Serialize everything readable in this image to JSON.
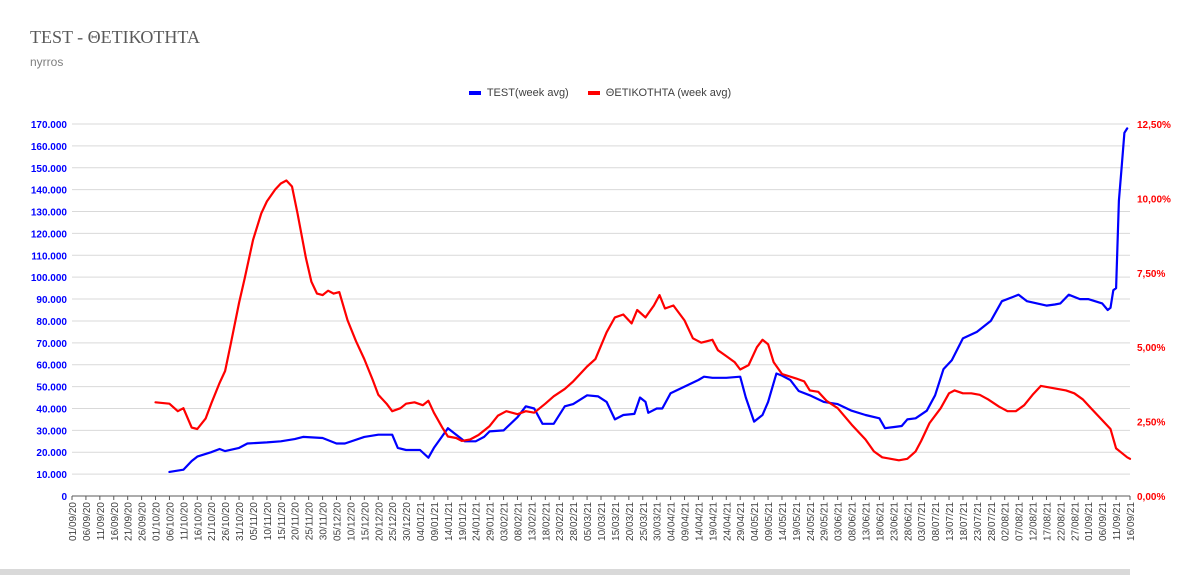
{
  "title": "TEST - ΘΕΤΙΚΟΤΗΤΑ",
  "subtitle": "nyrros",
  "colors": {
    "test": "#0000ff",
    "positivity": "#ff0000",
    "grid": "#d9d9d9",
    "axis_left": "#0000ff",
    "axis_right": "#ff0000"
  },
  "chart_data": {
    "type": "line",
    "title": "TEST - ΘΕΤΙΚΟΤΗΤΑ",
    "legend_position": "top-center",
    "grid": true,
    "x_tick_labels": [
      "01/09/20",
      "06/09/20",
      "11/09/20",
      "16/09/20",
      "21/09/20",
      "26/09/20",
      "01/10/20",
      "06/10/20",
      "11/10/20",
      "16/10/20",
      "21/10/20",
      "26/10/20",
      "31/10/20",
      "05/11/20",
      "10/11/20",
      "15/11/20",
      "20/11/20",
      "25/11/20",
      "30/11/20",
      "05/12/20",
      "10/12/20",
      "15/12/20",
      "20/12/20",
      "25/12/20",
      "30/12/20",
      "04/01/21",
      "09/01/21",
      "14/01/21",
      "19/01/21",
      "24/01/21",
      "29/01/21",
      "03/02/21",
      "08/02/21",
      "13/02/21",
      "18/02/21",
      "23/02/21",
      "28/02/21",
      "05/03/21",
      "10/03/21",
      "15/03/21",
      "20/03/21",
      "25/03/21",
      "30/03/21",
      "04/04/21",
      "09/04/21",
      "14/04/21",
      "19/04/21",
      "24/04/21",
      "29/04/21",
      "04/05/21",
      "09/05/21",
      "14/05/21",
      "19/05/21",
      "24/05/21",
      "29/05/21",
      "03/06/21",
      "08/06/21",
      "13/06/21",
      "18/06/21",
      "23/06/21",
      "28/06/21",
      "03/07/21",
      "08/07/21",
      "13/07/21",
      "18/07/21",
      "23/07/21",
      "28/07/21",
      "02/08/21",
      "07/08/21",
      "12/08/21",
      "17/08/21",
      "22/08/21",
      "27/08/21",
      "01/09/21",
      "06/09/21",
      "11/09/21",
      "16/09/21"
    ],
    "y_left": {
      "min": 0,
      "max": 170000,
      "ticks": [
        "0",
        "10.000",
        "20.000",
        "30.000",
        "40.000",
        "50.000",
        "60.000",
        "70.000",
        "80.000",
        "90.000",
        "100.000",
        "110.000",
        "120.000",
        "130.000",
        "140.000",
        "150.000",
        "160.000",
        "170.000"
      ]
    },
    "y_right": {
      "min": 0,
      "max": 12.5,
      "ticks": [
        "0,00%",
        "2,50%",
        "5,00%",
        "7,50%",
        "10,00%",
        "12,50%"
      ]
    },
    "series": [
      {
        "name": "TEST(week avg)",
        "axis": "left",
        "points": [
          [
            "06/10/20",
            11000
          ],
          [
            "11/10/20",
            12000
          ],
          [
            "14/10/20",
            16000
          ],
          [
            "16/10/20",
            18000
          ],
          [
            "21/10/20",
            20000
          ],
          [
            "24/10/20",
            21500
          ],
          [
            "26/10/20",
            20500
          ],
          [
            "31/10/20",
            22000
          ],
          [
            "03/11/20",
            24000
          ],
          [
            "10/11/20",
            24500
          ],
          [
            "15/11/20",
            25000
          ],
          [
            "20/11/20",
            26000
          ],
          [
            "23/11/20",
            27000
          ],
          [
            "30/11/20",
            26500
          ],
          [
            "05/12/20",
            24000
          ],
          [
            "08/12/20",
            24000
          ],
          [
            "15/12/20",
            27000
          ],
          [
            "20/12/20",
            28000
          ],
          [
            "25/12/20",
            28000
          ],
          [
            "27/12/20",
            22000
          ],
          [
            "30/12/20",
            21000
          ],
          [
            "04/01/21",
            21000
          ],
          [
            "07/01/21",
            17500
          ],
          [
            "09/01/21",
            22000
          ],
          [
            "14/01/21",
            31000
          ],
          [
            "17/01/21",
            28000
          ],
          [
            "20/01/21",
            25000
          ],
          [
            "24/01/21",
            25000
          ],
          [
            "27/01/21",
            27000
          ],
          [
            "29/01/21",
            29500
          ],
          [
            "03/02/21",
            30000
          ],
          [
            "08/02/21",
            36000
          ],
          [
            "11/02/21",
            41000
          ],
          [
            "14/02/21",
            40000
          ],
          [
            "17/02/21",
            33000
          ],
          [
            "21/02/21",
            33000
          ],
          [
            "25/02/21",
            41000
          ],
          [
            "28/02/21",
            42000
          ],
          [
            "05/03/21",
            46000
          ],
          [
            "09/03/21",
            45500
          ],
          [
            "12/03/21",
            43000
          ],
          [
            "15/03/21",
            35000
          ],
          [
            "18/03/21",
            37000
          ],
          [
            "22/03/21",
            37500
          ],
          [
            "24/03/21",
            45000
          ],
          [
            "26/03/21",
            43000
          ],
          [
            "27/03/21",
            38000
          ],
          [
            "30/03/21",
            40000
          ],
          [
            "01/04/21",
            40000
          ],
          [
            "04/04/21",
            47000
          ],
          [
            "09/04/21",
            50000
          ],
          [
            "14/04/21",
            53000
          ],
          [
            "16/04/21",
            54500
          ],
          [
            "19/04/21",
            54000
          ],
          [
            "24/04/21",
            54000
          ],
          [
            "29/04/21",
            54500
          ],
          [
            "01/05/21",
            45000
          ],
          [
            "04/05/21",
            34000
          ],
          [
            "07/05/21",
            37000
          ],
          [
            "09/05/21",
            43000
          ],
          [
            "12/05/21",
            56000
          ],
          [
            "14/05/21",
            55000
          ],
          [
            "17/05/21",
            53000
          ],
          [
            "20/05/21",
            48000
          ],
          [
            "24/05/21",
            46000
          ],
          [
            "29/05/21",
            43000
          ],
          [
            "03/06/21",
            42000
          ],
          [
            "08/06/21",
            39000
          ],
          [
            "13/06/21",
            37000
          ],
          [
            "18/06/21",
            35500
          ],
          [
            "20/06/21",
            31000
          ],
          [
            "23/06/21",
            31500
          ],
          [
            "26/06/21",
            32000
          ],
          [
            "28/06/21",
            35000
          ],
          [
            "01/07/21",
            35500
          ],
          [
            "05/07/21",
            39000
          ],
          [
            "08/07/21",
            46000
          ],
          [
            "11/07/21",
            58000
          ],
          [
            "14/07/21",
            62000
          ],
          [
            "18/07/21",
            72000
          ],
          [
            "23/07/21",
            75000
          ],
          [
            "28/07/21",
            80000
          ],
          [
            "01/08/21",
            89000
          ],
          [
            "05/08/21",
            91000
          ],
          [
            "07/08/21",
            92000
          ],
          [
            "10/08/21",
            89000
          ],
          [
            "17/08/21",
            87000
          ],
          [
            "20/08/21",
            87500
          ],
          [
            "22/08/21",
            88000
          ],
          [
            "25/08/21",
            92000
          ],
          [
            "29/08/21",
            90000
          ],
          [
            "01/09/21",
            90000
          ],
          [
            "06/09/21",
            88000
          ],
          [
            "08/09/21",
            85000
          ],
          [
            "09/09/21",
            86000
          ],
          [
            "10/09/21",
            94000
          ],
          [
            "11/09/21",
            95000
          ],
          [
            "12/09/21",
            135000
          ],
          [
            "13/09/21",
            150000
          ],
          [
            "14/09/21",
            166000
          ],
          [
            "15/09/21",
            168000
          ]
        ]
      },
      {
        "name": "ΘΕΤΙΚΟΤΗΤΑ (week avg)",
        "axis": "right",
        "points": [
          [
            "01/10/20",
            3.15
          ],
          [
            "06/10/20",
            3.1
          ],
          [
            "09/10/20",
            2.85
          ],
          [
            "11/10/20",
            2.95
          ],
          [
            "14/10/20",
            2.3
          ],
          [
            "16/10/20",
            2.25
          ],
          [
            "19/10/20",
            2.6
          ],
          [
            "21/10/20",
            3.1
          ],
          [
            "24/10/20",
            3.8
          ],
          [
            "26/10/20",
            4.2
          ],
          [
            "28/10/20",
            5.1
          ],
          [
            "31/10/20",
            6.5
          ],
          [
            "02/11/20",
            7.3
          ],
          [
            "05/11/20",
            8.6
          ],
          [
            "08/11/20",
            9.5
          ],
          [
            "10/11/20",
            9.9
          ],
          [
            "13/11/20",
            10.3
          ],
          [
            "15/11/20",
            10.5
          ],
          [
            "17/11/20",
            10.6
          ],
          [
            "19/11/20",
            10.4
          ],
          [
            "21/11/20",
            9.5
          ],
          [
            "24/11/20",
            8.0
          ],
          [
            "26/11/20",
            7.2
          ],
          [
            "28/11/20",
            6.8
          ],
          [
            "30/11/20",
            6.75
          ],
          [
            "02/12/20",
            6.9
          ],
          [
            "04/12/20",
            6.8
          ],
          [
            "06/12/20",
            6.85
          ],
          [
            "09/12/20",
            5.9
          ],
          [
            "12/12/20",
            5.2
          ],
          [
            "15/12/20",
            4.6
          ],
          [
            "18/12/20",
            3.9
          ],
          [
            "20/12/20",
            3.4
          ],
          [
            "23/12/20",
            3.1
          ],
          [
            "25/12/20",
            2.85
          ],
          [
            "28/12/20",
            2.95
          ],
          [
            "30/12/20",
            3.1
          ],
          [
            "02/01/21",
            3.15
          ],
          [
            "05/01/21",
            3.05
          ],
          [
            "07/01/21",
            3.2
          ],
          [
            "09/01/21",
            2.8
          ],
          [
            "12/01/21",
            2.3
          ],
          [
            "14/01/21",
            2.0
          ],
          [
            "17/01/21",
            1.95
          ],
          [
            "19/01/21",
            1.85
          ],
          [
            "22/01/21",
            1.9
          ],
          [
            "25/01/21",
            2.05
          ],
          [
            "29/01/21",
            2.35
          ],
          [
            "01/02/21",
            2.7
          ],
          [
            "04/02/21",
            2.85
          ],
          [
            "08/02/21",
            2.75
          ],
          [
            "11/02/21",
            2.85
          ],
          [
            "14/02/21",
            2.8
          ],
          [
            "18/02/21",
            3.1
          ],
          [
            "21/02/21",
            3.35
          ],
          [
            "25/02/21",
            3.6
          ],
          [
            "28/02/21",
            3.85
          ],
          [
            "05/03/21",
            4.35
          ],
          [
            "08/03/21",
            4.6
          ],
          [
            "12/03/21",
            5.5
          ],
          [
            "15/03/21",
            6.0
          ],
          [
            "18/03/21",
            6.1
          ],
          [
            "21/03/21",
            5.8
          ],
          [
            "23/03/21",
            6.25
          ],
          [
            "26/03/21",
            6.0
          ],
          [
            "29/03/21",
            6.4
          ],
          [
            "31/03/21",
            6.75
          ],
          [
            "02/04/21",
            6.3
          ],
          [
            "05/04/21",
            6.4
          ],
          [
            "09/04/21",
            5.9
          ],
          [
            "12/04/21",
            5.3
          ],
          [
            "15/04/21",
            5.15
          ],
          [
            "19/04/21",
            5.25
          ],
          [
            "21/04/21",
            4.9
          ],
          [
            "24/04/21",
            4.7
          ],
          [
            "27/04/21",
            4.5
          ],
          [
            "29/04/21",
            4.25
          ],
          [
            "02/05/21",
            4.4
          ],
          [
            "05/05/21",
            5.0
          ],
          [
            "07/05/21",
            5.25
          ],
          [
            "09/05/21",
            5.1
          ],
          [
            "11/05/21",
            4.5
          ],
          [
            "14/05/21",
            4.1
          ],
          [
            "19/05/21",
            3.95
          ],
          [
            "22/05/21",
            3.85
          ],
          [
            "24/05/21",
            3.55
          ],
          [
            "27/05/21",
            3.5
          ],
          [
            "30/05/21",
            3.2
          ],
          [
            "03/06/21",
            2.95
          ],
          [
            "08/06/21",
            2.4
          ],
          [
            "13/06/21",
            1.9
          ],
          [
            "16/06/21",
            1.5
          ],
          [
            "19/06/21",
            1.3
          ],
          [
            "22/06/21",
            1.25
          ],
          [
            "25/06/21",
            1.2
          ],
          [
            "28/06/21",
            1.25
          ],
          [
            "01/07/21",
            1.5
          ],
          [
            "03/07/21",
            1.85
          ],
          [
            "06/07/21",
            2.45
          ],
          [
            "10/07/21",
            2.95
          ],
          [
            "13/07/21",
            3.45
          ],
          [
            "15/07/21",
            3.55
          ],
          [
            "18/07/21",
            3.45
          ],
          [
            "21/07/21",
            3.45
          ],
          [
            "24/07/21",
            3.4
          ],
          [
            "27/07/21",
            3.25
          ],
          [
            "31/07/21",
            3.0
          ],
          [
            "03/08/21",
            2.85
          ],
          [
            "06/08/21",
            2.85
          ],
          [
            "09/08/21",
            3.05
          ],
          [
            "12/08/21",
            3.4
          ],
          [
            "15/08/21",
            3.7
          ],
          [
            "18/08/21",
            3.65
          ],
          [
            "21/08/21",
            3.6
          ],
          [
            "24/08/21",
            3.55
          ],
          [
            "27/08/21",
            3.45
          ],
          [
            "30/08/21",
            3.25
          ],
          [
            "02/09/21",
            2.95
          ],
          [
            "06/09/21",
            2.55
          ],
          [
            "09/09/21",
            2.25
          ],
          [
            "11/09/21",
            1.6
          ],
          [
            "13/09/21",
            1.45
          ],
          [
            "15/09/21",
            1.3
          ],
          [
            "16/09/21",
            1.25
          ]
        ]
      }
    ]
  }
}
